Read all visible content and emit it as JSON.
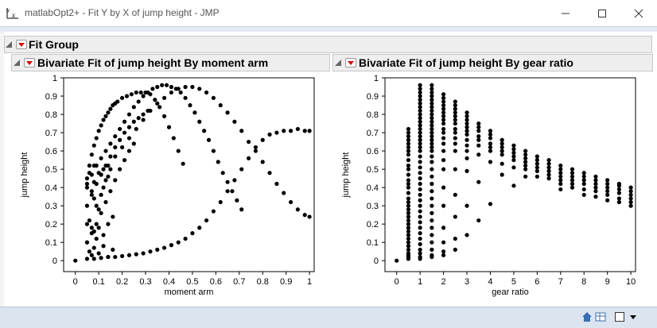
{
  "window": {
    "title": "matlabOpt2+ - Fit Y by X of jump height - JMP",
    "minimize": "minimize",
    "maximize": "maximize",
    "close": "close"
  },
  "group": {
    "title": "Fit Group"
  },
  "panels": [
    {
      "title": "Bivariate Fit of jump height By moment arm"
    },
    {
      "title": "Bivariate Fit of jump height By gear ratio"
    }
  ],
  "chart_data": [
    {
      "type": "scatter",
      "xlabel": "moment arm",
      "ylabel": "jump height",
      "xlim": [
        -0.05,
        1.02
      ],
      "ylim": [
        -0.06,
        1.0
      ],
      "xticks": [
        "0",
        "0.1",
        "0.2",
        "0.3",
        "0.4",
        "0.5",
        "0.6",
        "0.7",
        "0.8",
        "0.9",
        "1"
      ],
      "yticks": [
        "0",
        "0.1",
        "0.2",
        "0.3",
        "0.4",
        "0.5",
        "0.6",
        "0.7",
        "0.8",
        "0.9",
        "1"
      ],
      "curves": [
        {
          "x": [
            0.05,
            0.06,
            0.07,
            0.08,
            0.09,
            0.1,
            0.11,
            0.12,
            0.13,
            0.14,
            0.15,
            0.16,
            0.17,
            0.18,
            0.2,
            0.22,
            0.24,
            0.26,
            0.28,
            0.3,
            0.32,
            0.34,
            0.36,
            0.38,
            0.4,
            0.42,
            0.44,
            0.46
          ],
          "y": [
            0.45,
            0.52,
            0.58,
            0.63,
            0.67,
            0.71,
            0.74,
            0.77,
            0.79,
            0.81,
            0.83,
            0.85,
            0.86,
            0.87,
            0.89,
            0.9,
            0.91,
            0.92,
            0.92,
            0.92,
            0.91,
            0.88,
            0.84,
            0.79,
            0.73,
            0.67,
            0.6,
            0.53
          ]
        },
        {
          "x": [
            0.05,
            0.07,
            0.09,
            0.11,
            0.13,
            0.15,
            0.17,
            0.19,
            0.21,
            0.23,
            0.25,
            0.27,
            0.29,
            0.31,
            0.33,
            0.35,
            0.37,
            0.39,
            0.41,
            0.43,
            0.45,
            0.47,
            0.49,
            0.51,
            0.53,
            0.55,
            0.57,
            0.59,
            0.61,
            0.63,
            0.65,
            0.67,
            0.69,
            0.71
          ],
          "y": [
            0.42,
            0.47,
            0.52,
            0.56,
            0.6,
            0.64,
            0.68,
            0.72,
            0.76,
            0.8,
            0.84,
            0.87,
            0.9,
            0.92,
            0.94,
            0.95,
            0.96,
            0.96,
            0.95,
            0.94,
            0.92,
            0.89,
            0.85,
            0.81,
            0.76,
            0.71,
            0.66,
            0.6,
            0.54,
            0.48,
            0.43,
            0.38,
            0.33,
            0.28
          ]
        },
        {
          "x": [
            0.05,
            0.08,
            0.11,
            0.14,
            0.17,
            0.2,
            0.23,
            0.26,
            0.29,
            0.32,
            0.35,
            0.38,
            0.41,
            0.44,
            0.47,
            0.5,
            0.53,
            0.56,
            0.59,
            0.62,
            0.65,
            0.68,
            0.71,
            0.74,
            0.77,
            0.8,
            0.83,
            0.86,
            0.89,
            0.92,
            0.95,
            0.98,
            1.0
          ],
          "y": [
            0.4,
            0.43,
            0.47,
            0.52,
            0.57,
            0.62,
            0.67,
            0.72,
            0.77,
            0.82,
            0.86,
            0.89,
            0.92,
            0.94,
            0.95,
            0.95,
            0.94,
            0.92,
            0.89,
            0.85,
            0.81,
            0.76,
            0.71,
            0.65,
            0.6,
            0.54,
            0.48,
            0.42,
            0.37,
            0.32,
            0.28,
            0.25,
            0.24
          ]
        },
        {
          "x": [
            0.05,
            0.08,
            0.11,
            0.14,
            0.17,
            0.2,
            0.23,
            0.26,
            0.29,
            0.32,
            0.35,
            0.38,
            0.41,
            0.44,
            0.47,
            0.5,
            0.53,
            0.56,
            0.59,
            0.62,
            0.65,
            0.68,
            0.71,
            0.74,
            0.77,
            0.8,
            0.83,
            0.86,
            0.89,
            0.92,
            0.95,
            0.98,
            1.0
          ],
          "y": [
            0.01,
            0.01,
            0.015,
            0.02,
            0.02,
            0.025,
            0.03,
            0.035,
            0.04,
            0.05,
            0.06,
            0.07,
            0.085,
            0.1,
            0.12,
            0.15,
            0.18,
            0.22,
            0.27,
            0.32,
            0.38,
            0.44,
            0.5,
            0.56,
            0.62,
            0.66,
            0.69,
            0.7,
            0.71,
            0.71,
            0.72,
            0.71,
            0.71
          ]
        },
        {
          "x": [
            0.05,
            0.07,
            0.09,
            0.11,
            0.13,
            0.15,
            0.17,
            0.19,
            0.21,
            0.23,
            0.25,
            0.27,
            0.29,
            0.31
          ],
          "y": [
            0.3,
            0.36,
            0.42,
            0.47,
            0.52,
            0.57,
            0.62,
            0.66,
            0.7,
            0.73,
            0.76,
            0.78,
            0.8,
            0.82
          ]
        },
        {
          "x": [
            0.05,
            0.07,
            0.09,
            0.11,
            0.13,
            0.15,
            0.17,
            0.19,
            0.21,
            0.23,
            0.25
          ],
          "y": [
            0.1,
            0.15,
            0.2,
            0.26,
            0.32,
            0.38,
            0.44,
            0.5,
            0.55,
            0.6,
            0.64
          ]
        }
      ],
      "extra_points": [
        [
          0.0,
          0.0
        ],
        [
          0.05,
          0.1
        ],
        [
          0.05,
          0.2
        ],
        [
          0.06,
          0.22
        ],
        [
          0.07,
          0.18
        ],
        [
          0.08,
          0.16
        ],
        [
          0.09,
          0.12
        ],
        [
          0.1,
          0.18
        ],
        [
          0.12,
          0.14
        ],
        [
          0.14,
          0.2
        ],
        [
          0.16,
          0.24
        ],
        [
          0.07,
          0.38
        ],
        [
          0.08,
          0.34
        ],
        [
          0.09,
          0.3
        ],
        [
          0.1,
          0.28
        ],
        [
          0.11,
          0.36
        ],
        [
          0.12,
          0.4
        ],
        [
          0.13,
          0.44
        ],
        [
          0.14,
          0.46
        ],
        [
          0.15,
          0.5
        ],
        [
          0.12,
          0.5
        ],
        [
          0.1,
          0.48
        ],
        [
          0.08,
          0.52
        ],
        [
          0.06,
          0.48
        ],
        [
          0.06,
          0.05
        ],
        [
          0.07,
          0.03
        ],
        [
          0.08,
          0.07
        ],
        [
          0.1,
          0.04
        ],
        [
          0.12,
          0.08
        ],
        [
          0.14,
          0.02
        ],
        [
          0.16,
          0.06
        ]
      ]
    },
    {
      "type": "scatter",
      "xlabel": "gear ratio",
      "ylabel": "jump height",
      "xlim": [
        -0.5,
        10.2
      ],
      "ylim": [
        -0.06,
        1.0
      ],
      "xticks": [
        "0",
        "1",
        "2",
        "3",
        "4",
        "5",
        "6",
        "7",
        "8",
        "9",
        "10"
      ],
      "yticks": [
        "0",
        "0.1",
        "0.2",
        "0.3",
        "0.4",
        "0.5",
        "0.6",
        "0.7",
        "0.8",
        "0.9",
        "1"
      ],
      "columns": [
        {
          "x": 0.0,
          "y": [
            0.0
          ]
        },
        {
          "x": 0.5,
          "y": [
            0.72,
            0.7,
            0.68,
            0.66,
            0.64,
            0.62,
            0.6,
            0.58,
            0.55,
            0.52,
            0.5,
            0.47,
            0.44,
            0.42,
            0.4,
            0.37,
            0.34,
            0.32,
            0.3,
            0.28,
            0.26,
            0.24,
            0.22,
            0.2,
            0.18,
            0.16,
            0.14,
            0.12,
            0.1,
            0.08,
            0.06,
            0.04,
            0.03,
            0.02,
            0.01
          ]
        },
        {
          "x": 1.0,
          "y": [
            0.96,
            0.94,
            0.92,
            0.9,
            0.88,
            0.86,
            0.84,
            0.82,
            0.8,
            0.78,
            0.76,
            0.74,
            0.72,
            0.7,
            0.68,
            0.66,
            0.64,
            0.62,
            0.6,
            0.57,
            0.54,
            0.51,
            0.48,
            0.45,
            0.42,
            0.39,
            0.36,
            0.33,
            0.3,
            0.27,
            0.24,
            0.21,
            0.18,
            0.15,
            0.12,
            0.09,
            0.06,
            0.04,
            0.02,
            0.01
          ]
        },
        {
          "x": 1.5,
          "y": [
            0.96,
            0.94,
            0.92,
            0.9,
            0.88,
            0.86,
            0.84,
            0.82,
            0.8,
            0.78,
            0.76,
            0.74,
            0.72,
            0.7,
            0.68,
            0.66,
            0.64,
            0.62,
            0.6,
            0.57,
            0.54,
            0.5,
            0.46,
            0.42,
            0.38,
            0.34,
            0.3,
            0.26,
            0.22,
            0.18,
            0.14,
            0.1,
            0.06,
            0.03,
            0.02
          ]
        },
        {
          "x": 2.0,
          "y": [
            0.91,
            0.89,
            0.87,
            0.85,
            0.83,
            0.81,
            0.79,
            0.77,
            0.75,
            0.72,
            0.7,
            0.67,
            0.64,
            0.6,
            0.55,
            0.5,
            0.4,
            0.3,
            0.18,
            0.1,
            0.05,
            0.03
          ]
        },
        {
          "x": 2.5,
          "y": [
            0.87,
            0.85,
            0.83,
            0.81,
            0.79,
            0.77,
            0.75,
            0.72,
            0.7,
            0.67,
            0.64,
            0.6,
            0.5,
            0.36,
            0.24,
            0.12,
            0.06
          ]
        },
        {
          "x": 3.0,
          "y": [
            0.81,
            0.79,
            0.77,
            0.75,
            0.73,
            0.71,
            0.69,
            0.66,
            0.63,
            0.6,
            0.56,
            0.49,
            0.3,
            0.14
          ]
        },
        {
          "x": 3.5,
          "y": [
            0.75,
            0.73,
            0.71,
            0.68,
            0.66,
            0.63,
            0.58,
            0.43,
            0.22
          ]
        },
        {
          "x": 4.0,
          "y": [
            0.71,
            0.69,
            0.67,
            0.64,
            0.62,
            0.6,
            0.54,
            0.31
          ]
        },
        {
          "x": 4.5,
          "y": [
            0.66,
            0.64,
            0.62,
            0.6,
            0.58,
            0.53,
            0.47
          ]
        },
        {
          "x": 5.0,
          "y": [
            0.63,
            0.61,
            0.59,
            0.57,
            0.55,
            0.51,
            0.41
          ]
        },
        {
          "x": 5.5,
          "y": [
            0.6,
            0.58,
            0.56,
            0.54,
            0.52,
            0.5,
            0.46
          ]
        },
        {
          "x": 6.0,
          "y": [
            0.57,
            0.55,
            0.53,
            0.51,
            0.49,
            0.46
          ]
        },
        {
          "x": 6.5,
          "y": [
            0.55,
            0.53,
            0.51,
            0.49,
            0.47,
            0.45
          ]
        },
        {
          "x": 7.0,
          "y": [
            0.52,
            0.5,
            0.48,
            0.46,
            0.44,
            0.42,
            0.39
          ]
        },
        {
          "x": 7.5,
          "y": [
            0.5,
            0.48,
            0.46,
            0.44,
            0.42,
            0.4
          ]
        },
        {
          "x": 8.0,
          "y": [
            0.48,
            0.46,
            0.44,
            0.42,
            0.39,
            0.36
          ]
        },
        {
          "x": 8.5,
          "y": [
            0.46,
            0.44,
            0.42,
            0.4,
            0.38,
            0.35
          ]
        },
        {
          "x": 9.0,
          "y": [
            0.44,
            0.42,
            0.4,
            0.38,
            0.36,
            0.33
          ]
        },
        {
          "x": 9.5,
          "y": [
            0.42,
            0.41,
            0.39,
            0.37,
            0.34,
            0.32
          ]
        },
        {
          "x": 10.0,
          "y": [
            0.4,
            0.38,
            0.36,
            0.34,
            0.32,
            0.3
          ]
        }
      ]
    }
  ],
  "statusbar": {
    "home_icon": "home-icon",
    "table_icon": "table-icon",
    "window_icon": "window-icon",
    "dropdown_icon": "dropdown-icon"
  }
}
